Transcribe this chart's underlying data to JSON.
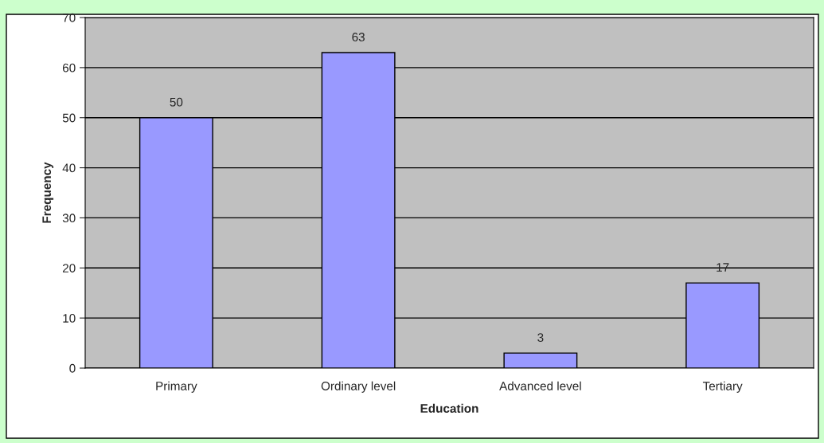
{
  "chart_data": {
    "type": "bar",
    "xlabel": "Education",
    "ylabel": "Frequency",
    "categories": [
      "Primary",
      "Ordinary level",
      "Advanced level",
      "Tertiary"
    ],
    "values": [
      50,
      63,
      3,
      17
    ],
    "color": "#9999ff",
    "ylim": [
      0,
      70
    ],
    "yticks": [
      0,
      10,
      20,
      30,
      40,
      50,
      60,
      70
    ],
    "grid": "y",
    "data_labels": true
  }
}
